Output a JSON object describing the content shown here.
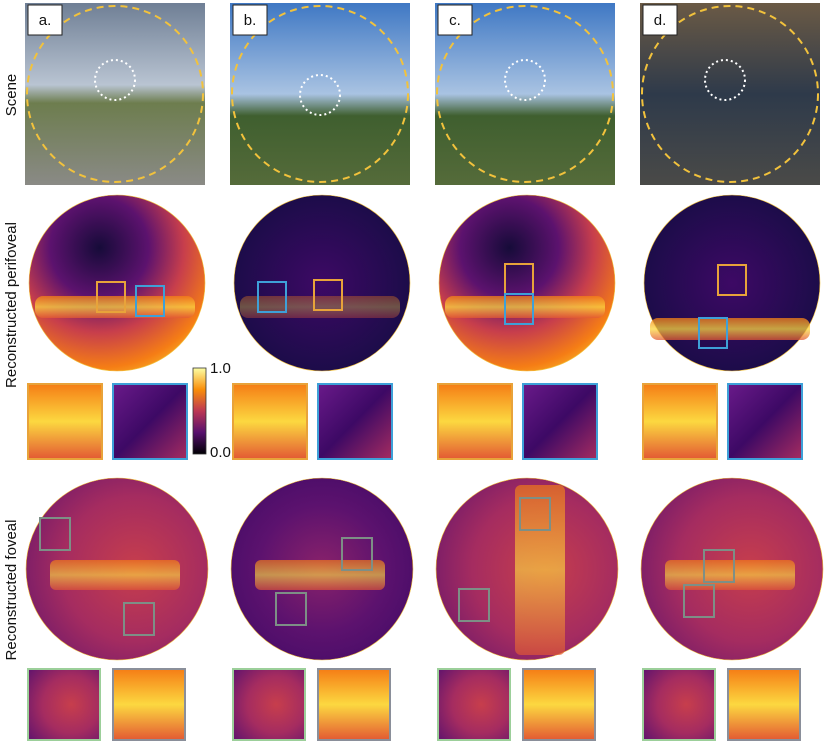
{
  "panels": [
    {
      "label": "a."
    },
    {
      "label": "b."
    },
    {
      "label": "c."
    },
    {
      "label": "d."
    }
  ],
  "row_labels": {
    "scene": "Scene",
    "perifoveal": "Reconstructed perifoveal",
    "foveal": "Reconstructed foveal"
  },
  "colorbar": {
    "max": "1.0",
    "min": "0.0"
  }
}
